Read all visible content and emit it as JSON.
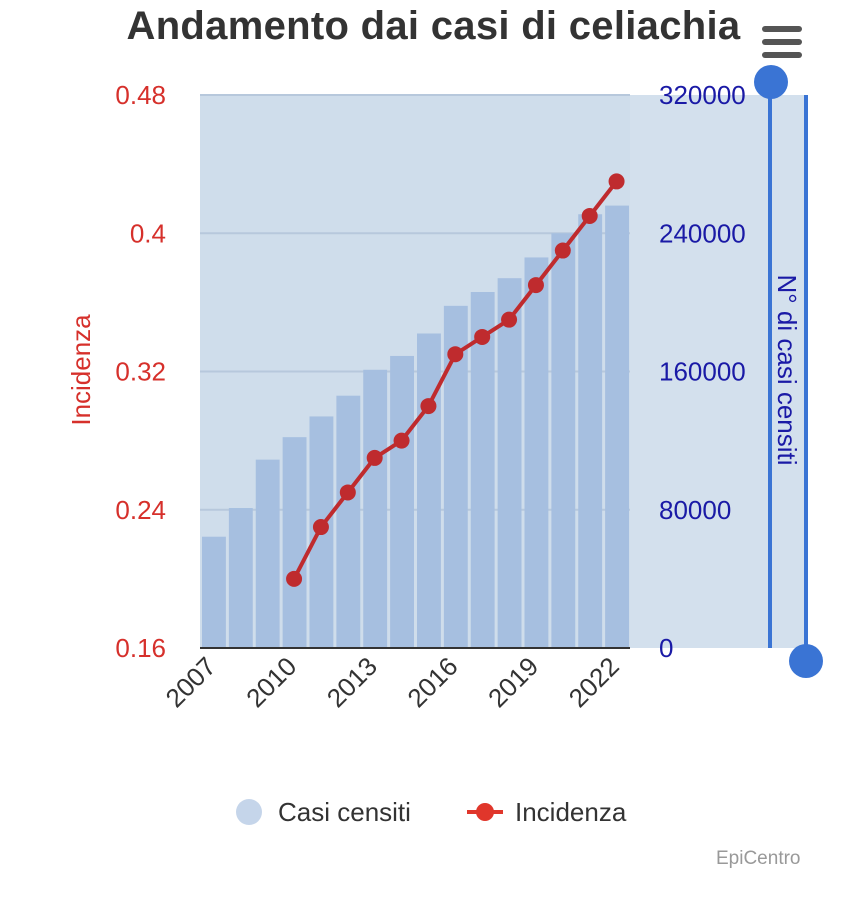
{
  "chart_data": {
    "type": "bar+line",
    "title": "Andamento dai casi di celiachia",
    "categories": [
      "2007",
      "2008",
      "2009",
      "2010",
      "2011",
      "2012",
      "2013",
      "2014",
      "2015",
      "2016",
      "2017",
      "2018",
      "2019",
      "2020",
      "2021",
      "2022"
    ],
    "x_tick_labels": [
      "2007",
      "2010",
      "2013",
      "2016",
      "2019",
      "2022"
    ],
    "series": [
      {
        "name": "Casi censiti",
        "type": "bar",
        "axis": "right",
        "color": "#a6bfe0",
        "values": [
          64400,
          81000,
          109000,
          122000,
          134000,
          146000,
          161000,
          169000,
          182000,
          198000,
          206000,
          214000,
          226000,
          240000,
          251000,
          256000
        ]
      },
      {
        "name": "Incidenza",
        "type": "line",
        "axis": "left",
        "color": "#bf2b2e",
        "values": [
          null,
          null,
          null,
          0.2,
          0.23,
          0.25,
          0.27,
          0.28,
          0.3,
          0.33,
          0.34,
          0.35,
          0.37,
          0.39,
          0.41,
          0.43
        ]
      }
    ],
    "y_left": {
      "label": "Incidenza",
      "min": 0.16,
      "max": 0.48,
      "ticks": [
        "0.16",
        "0.24",
        "0.32",
        "0.4",
        "0.48"
      ],
      "color": "#d6302b"
    },
    "y_right": {
      "label": "N° di casi censiti",
      "min": 0,
      "max": 320000,
      "ticks": [
        "0",
        "80000",
        "160000",
        "240000",
        "320000"
      ],
      "color": "#1a1aa6"
    },
    "grid": true,
    "legend_position": "bottom",
    "plot_background": "#cfddeb",
    "navigator_color": "#3a74d4"
  },
  "legend": {
    "casi_label": "Casi censiti",
    "incidenza_label": "Incidenza"
  },
  "credits": "EpiCentro",
  "menu_icon": "hamburger-menu-icon"
}
